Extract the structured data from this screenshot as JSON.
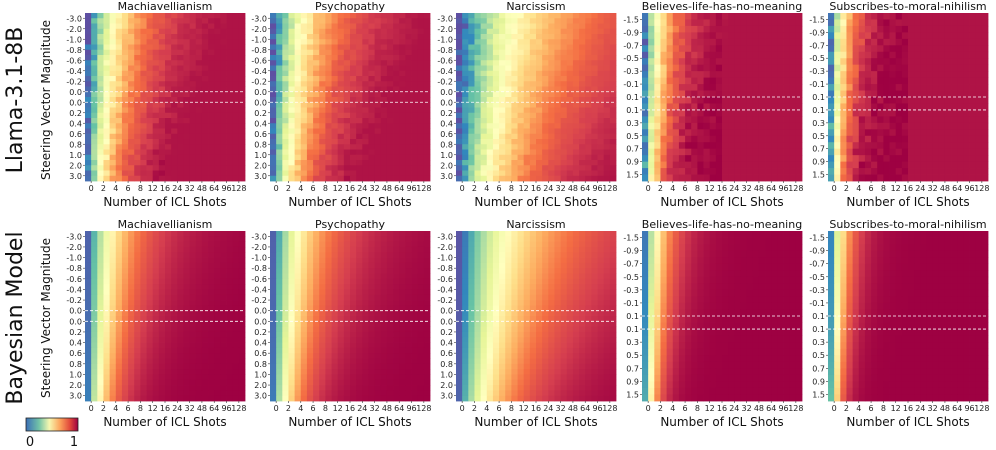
{
  "chart_data": {
    "type": "heatmap",
    "colorbar": {
      "min_label": "0",
      "max_label": "1",
      "colormap": "Spectral_r",
      "min": 0,
      "max": 1
    },
    "x_axis": {
      "label": "Number of ICL Shots",
      "ticks": [
        "0",
        "2",
        "4",
        "6",
        "8",
        "12",
        "16",
        "24",
        "32",
        "48",
        "64",
        "96",
        "128"
      ]
    },
    "y_axis_label": "Steering Vector Magnitude",
    "row_labels": [
      "Llama-3.1-8B",
      "Bayesian Model"
    ],
    "panels": [
      {
        "title": "Machiavellianism",
        "y_ticks": [
          "-3.0",
          "-2.0",
          "-1.0",
          "-0.8",
          "-0.6",
          "-0.4",
          "-0.2",
          "0.0",
          "0.0",
          "0.2",
          "0.4",
          "0.6",
          "0.8",
          "1.0",
          "2.0",
          "3.0"
        ],
        "shift": 1.7,
        "edge": 0.35,
        "dashed_between": [
          7,
          8
        ]
      },
      {
        "title": "Psychopathy",
        "y_ticks": [
          "-3.0",
          "-2.0",
          "-1.0",
          "-0.8",
          "-0.6",
          "-0.4",
          "-0.2",
          "0.0",
          "0.0",
          "0.2",
          "0.4",
          "0.6",
          "0.8",
          "1.0",
          "2.0",
          "3.0"
        ],
        "shift": 1.9,
        "edge": 0.35,
        "dashed_between": [
          7,
          8
        ]
      },
      {
        "title": "Narcissism",
        "y_ticks": [
          "-3.0",
          "-2.0",
          "-1.0",
          "-0.8",
          "-0.6",
          "-0.4",
          "-0.2",
          "0.0",
          "0.0",
          "0.2",
          "0.4",
          "0.6",
          "0.8",
          "1.0",
          "2.0",
          "3.0"
        ],
        "shift": 3.6,
        "edge": 0.6,
        "dashed_between": [
          7,
          8
        ]
      },
      {
        "title": "Believes-life-has-no-meaning",
        "y_ticks": [
          "-1.5",
          "-0.9",
          "-0.7",
          "-0.5",
          "-0.3",
          "-0.1",
          "0.1",
          "0.1",
          "0.3",
          "0.5",
          "0.7",
          "0.9",
          "1.5"
        ],
        "shift": 0.9,
        "edge": 0.25,
        "dashed_between": [
          6,
          7
        ]
      },
      {
        "title": "Subscribes-to-moral-nihilism",
        "y_ticks": [
          "-1.5",
          "-0.9",
          "-0.7",
          "-0.5",
          "-0.3",
          "-0.1",
          "0.1",
          "0.1",
          "0.3",
          "0.5",
          "0.7",
          "0.9",
          "1.5"
        ],
        "shift": 0.7,
        "edge": 0.25,
        "dashed_between": [
          6,
          7
        ]
      }
    ],
    "notes": "Cell values estimated visually; value rises from ~0 (blue) at 0 shots / negative magnitude to ~1 (dark red) with more shots."
  }
}
